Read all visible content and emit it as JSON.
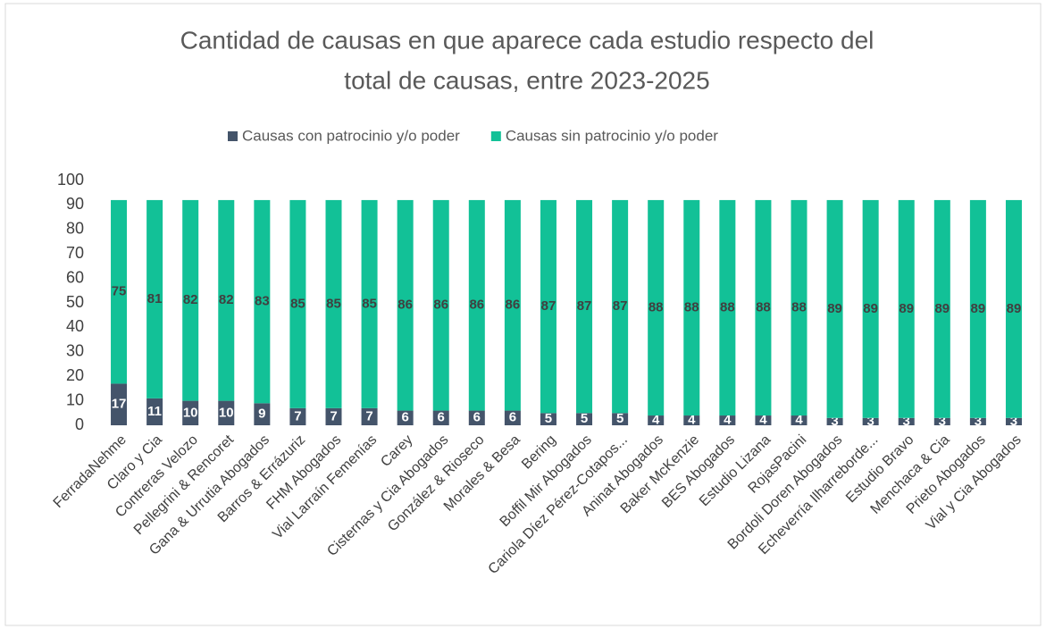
{
  "chart_data": {
    "type": "stacked_bar",
    "title": [
      "Cantidad de causas en que aparece cada estudio respecto del",
      "total de causas, entre 2023-2025"
    ],
    "categories": [
      "FerradaNehme",
      "Claro y Cia",
      "Contreras Velozo",
      "Pellegrini & Rencoret",
      "Gana & Urrutia Abogados",
      "Barros & Errázuriz",
      "FHM Abogados",
      "Vial Larraín Femenías",
      "Carey",
      "Cisternas y Cia Abogados",
      "González & Rioseco",
      "Morales & Besa",
      "Bering",
      "Boffil Mir Abogados",
      "Cariola Díez Pérez-Cotapos...",
      "Aninat Abogados",
      "Baker McKenzie",
      "BES Abogados",
      "Estudio Lizana",
      "RojasPacini",
      "Bordoli Doren Abogados",
      "Echeverría Ilharreborde...",
      "Estudio Bravo",
      "Menchaca & Cia",
      "Prieto Abogados",
      "Vial y Cia Abogados"
    ],
    "series": [
      {
        "name": "Causas con patrocinio y/o poder",
        "color": "#44546a",
        "values": [
          17,
          11,
          10,
          10,
          9,
          7,
          7,
          7,
          6,
          6,
          6,
          6,
          5,
          5,
          5,
          4,
          4,
          4,
          4,
          4,
          3,
          3,
          3,
          3,
          3,
          3
        ]
      },
      {
        "name": "Causas sin patrocinio y/o poder",
        "color": "#12c197",
        "values": [
          75,
          81,
          82,
          82,
          83,
          85,
          85,
          85,
          86,
          86,
          86,
          86,
          87,
          87,
          87,
          88,
          88,
          88,
          88,
          88,
          89,
          89,
          89,
          89,
          89,
          89
        ]
      }
    ],
    "ylim": [
      0,
      100
    ],
    "yticks": [
      0,
      10,
      20,
      30,
      40,
      50,
      60,
      70,
      80,
      90,
      100
    ],
    "legend": "top"
  }
}
